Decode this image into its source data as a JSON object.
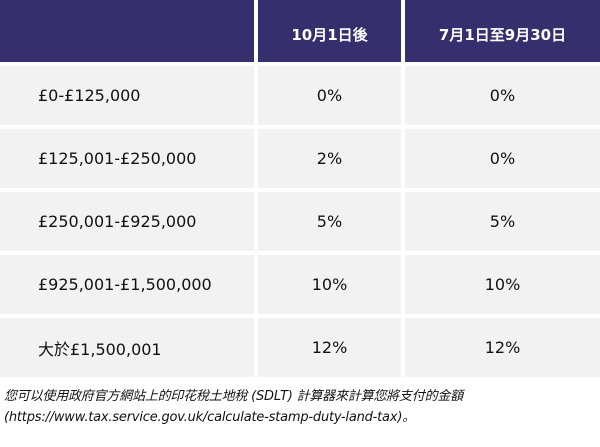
{
  "table": {
    "headers": [
      "",
      "10月1日後",
      "7月1日至9月30日"
    ],
    "rows": [
      {
        "band": "£0-£125,000",
        "after_oct1": "0%",
        "jul1_sep30": "0%"
      },
      {
        "band": "£125,001-£250,000",
        "after_oct1": "2%",
        "jul1_sep30": "0%"
      },
      {
        "band": "£250,001-£925,000",
        "after_oct1": "5%",
        "jul1_sep30": "5%"
      },
      {
        "band": "£925,001-£1,500,000",
        "after_oct1": "10%",
        "jul1_sep30": "10%"
      },
      {
        "band": "大於£1,500,001",
        "after_oct1": "12%",
        "jul1_sep30": "12%"
      }
    ]
  },
  "note": {
    "line1": "您可以使用政府官方網站上的印花稅土地稅 (SDLT) 計算器來計算您將支付的金額",
    "line2": "(https://www.tax.service.gov.uk/calculate-stamp-duty-land-tax)。"
  },
  "colors": {
    "header_bg": "#352f6e",
    "row_bg": "#f2f2f2"
  }
}
